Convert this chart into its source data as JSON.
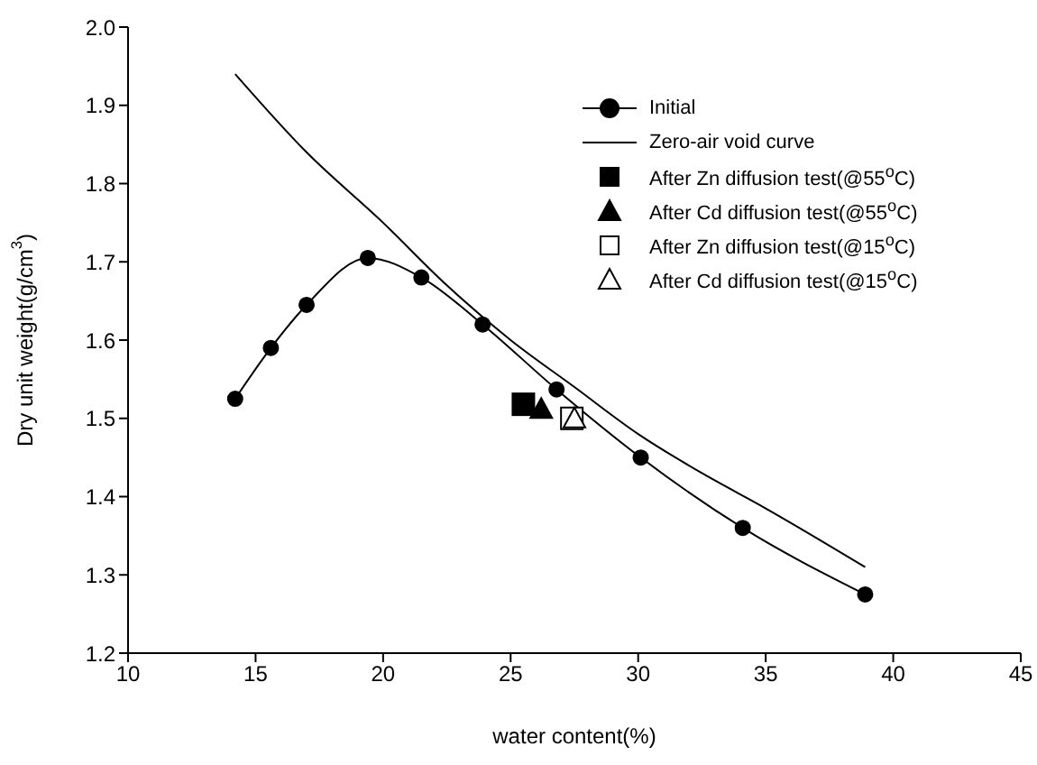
{
  "chart_data": {
    "type": "scatter",
    "xlabel": "water content(%)",
    "ylabel": "Dry unit weight(g/cm$^{3}$)",
    "xlim": [
      10,
      45
    ],
    "xticks": [
      10,
      15,
      20,
      25,
      30,
      35,
      40,
      45
    ],
    "ylim": [
      1.2,
      2.0
    ],
    "yticks": [
      1.2,
      1.3,
      1.4,
      1.5,
      1.6,
      1.7,
      1.8,
      1.9,
      {
        "value": 2,
        "label": "2.0"
      }
    ],
    "grid": false,
    "legend": "top right",
    "series": [
      {
        "name": "Initial",
        "type": "line",
        "marker": "circle",
        "color": "#000000",
        "x": [
          14.2,
          15.6,
          17.0,
          19.4,
          21.5,
          23.9,
          26.8,
          30.1,
          34.1,
          38.9
        ],
        "values": [
          1.525,
          1.59,
          1.645,
          1.705,
          1.68,
          1.62,
          1.537,
          1.45,
          1.36,
          1.275
        ]
      },
      {
        "name": "Zero-air void curve",
        "type": "line",
        "marker": "none",
        "color": "#000000",
        "x": [
          14.2,
          17,
          20,
          22.5,
          25,
          27.5,
          30,
          32.5,
          35,
          38.9
        ],
        "values": [
          1.94,
          1.84,
          1.75,
          1.67,
          1.6,
          1.54,
          1.48,
          1.43,
          1.385,
          1.31
        ]
      },
      {
        "name": "After Zn diffusion test(@55$^{o}$C)",
        "marker": "square",
        "color": "#000000",
        "x": [
          25.5
        ],
        "values": [
          1.518
        ]
      },
      {
        "name": "After Cd diffusion test(@55$^{o}$C)",
        "marker": "triangle",
        "color": "#000000",
        "x": [
          26.2
        ],
        "values": [
          1.512
        ]
      },
      {
        "name": "After Zn diffusion test(@15$^{o}$C)",
        "marker": "square-open",
        "color": "#000000",
        "x": [
          27.4
        ],
        "values": [
          1.5
        ]
      },
      {
        "name": "After Cd diffusion test(@15$^{o}$C)",
        "marker": "triangle-open",
        "color": "#000000",
        "x": [
          27.5
        ],
        "values": [
          1.5
        ]
      }
    ]
  }
}
